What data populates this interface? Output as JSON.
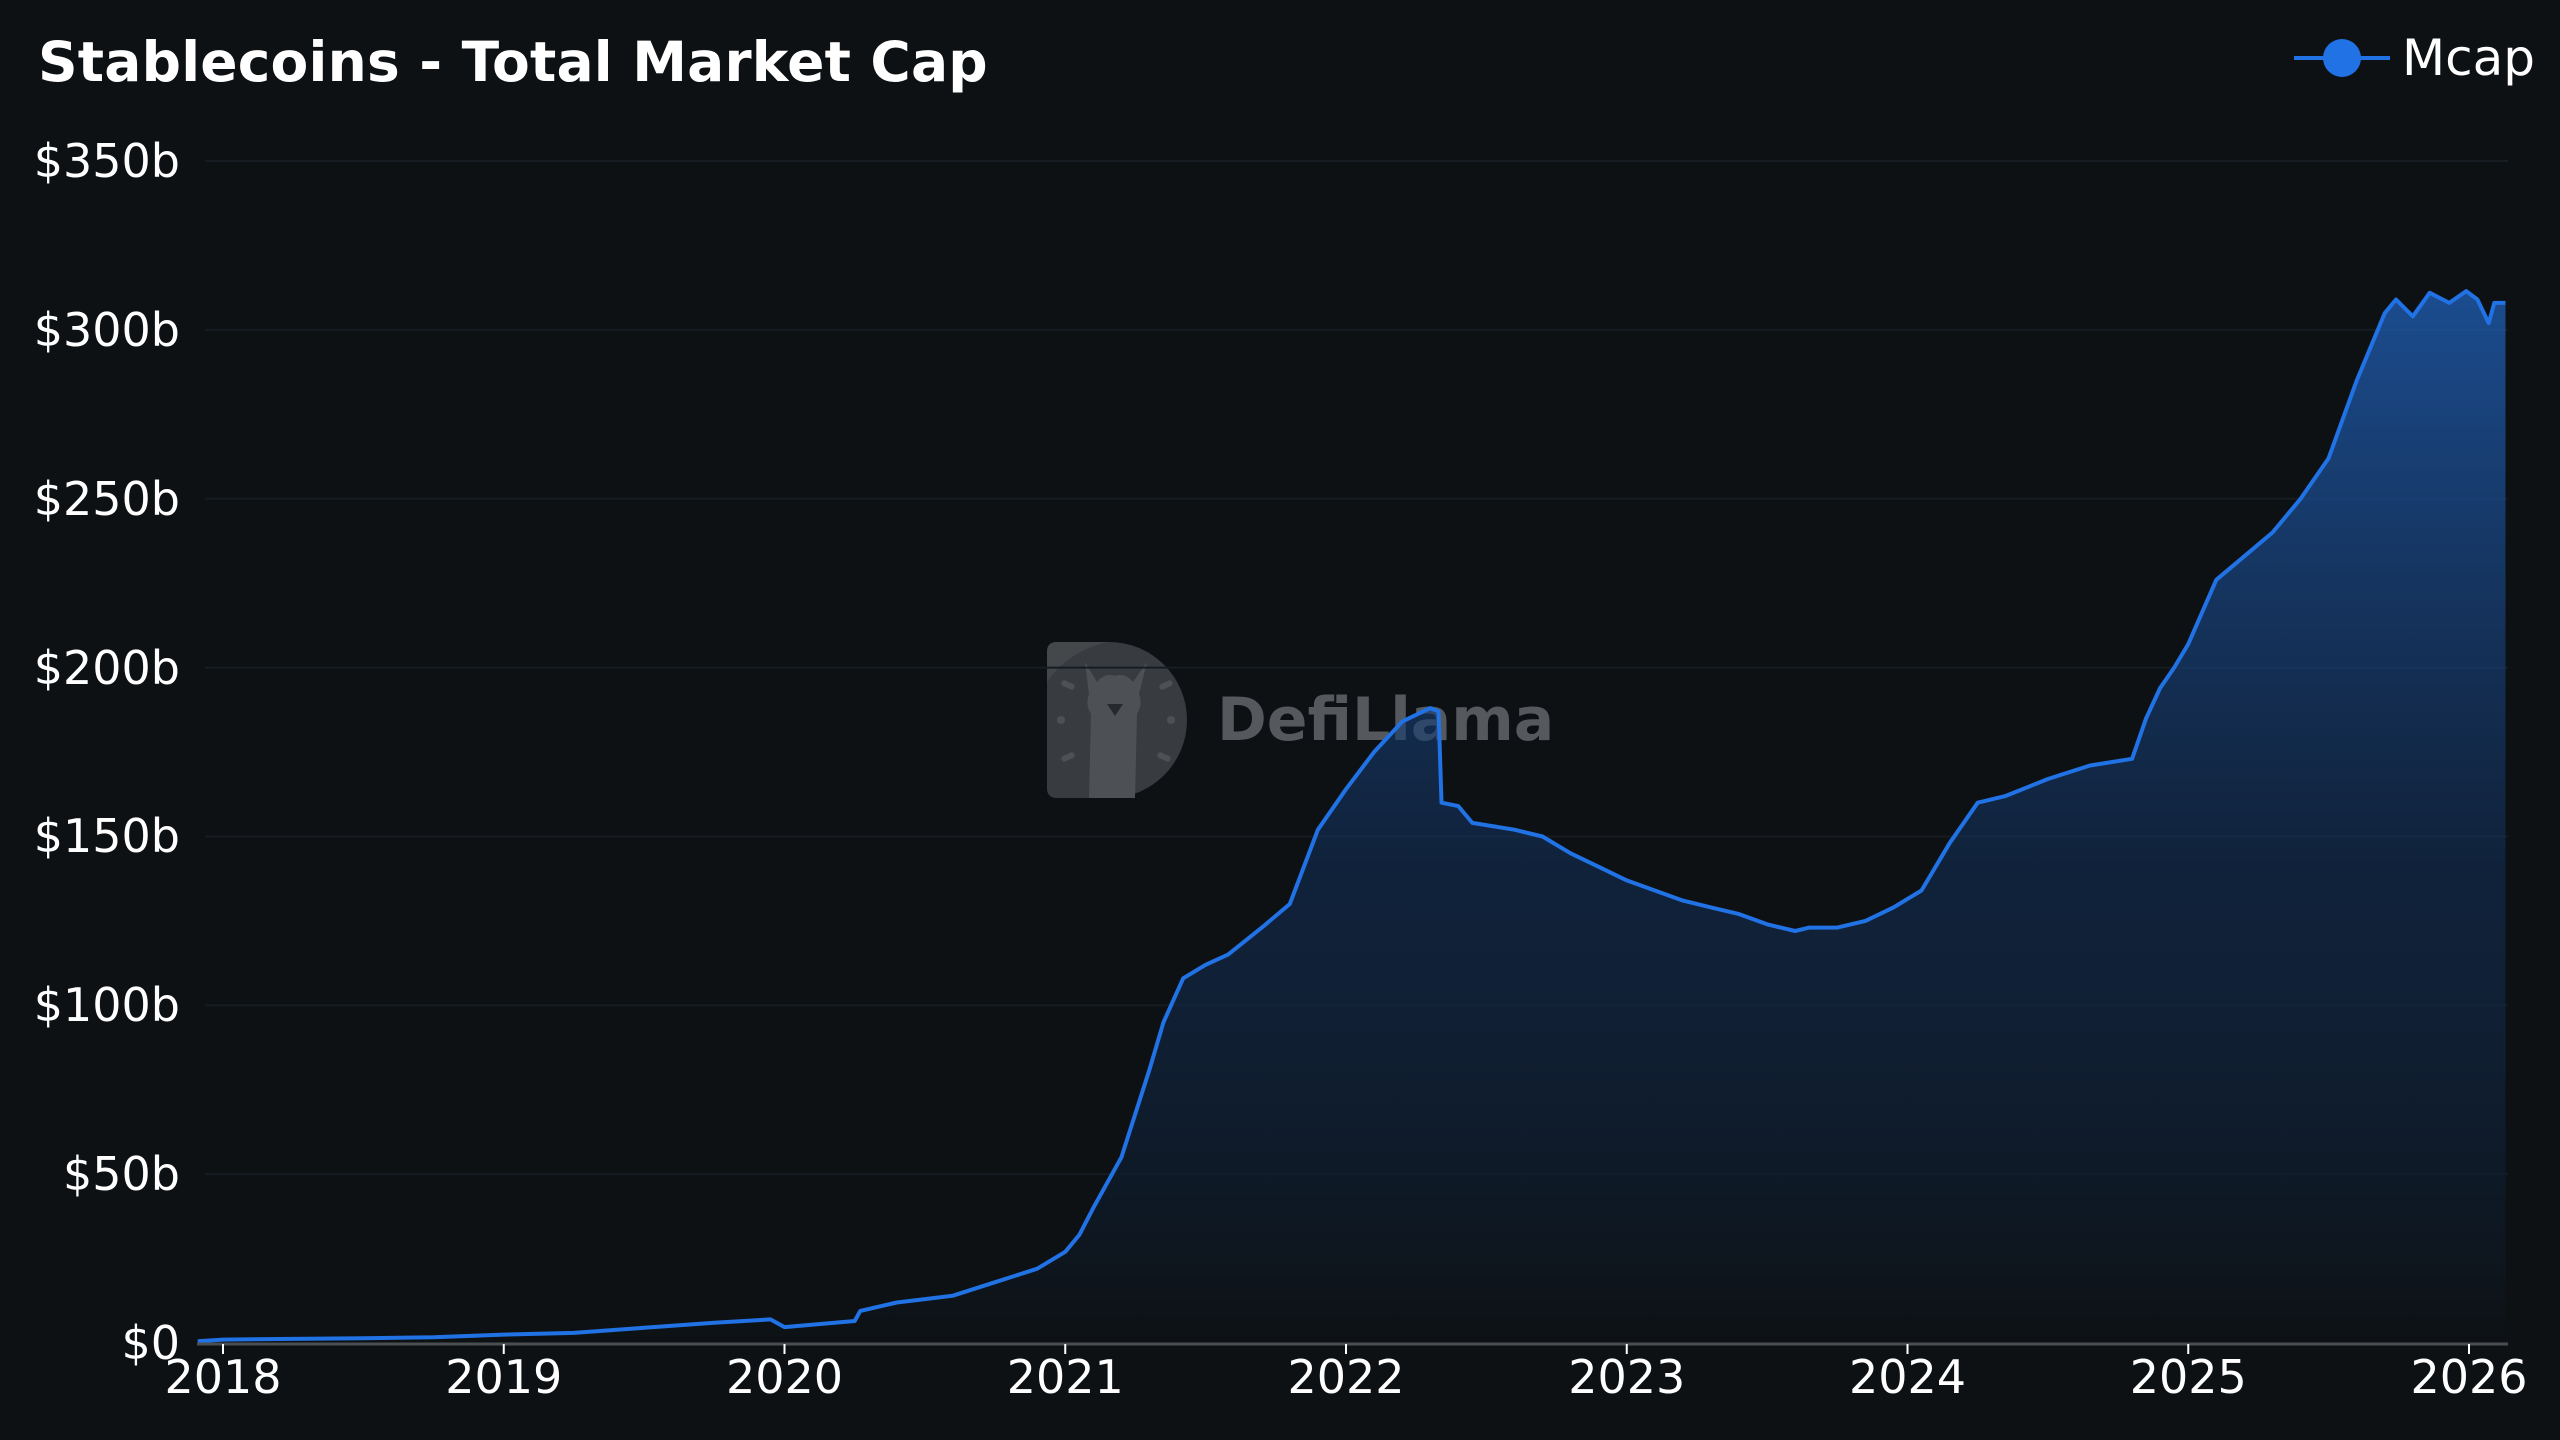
{
  "header": {
    "title": "Stablecoins - Total Market Cap"
  },
  "legend": {
    "label": "Mcap",
    "icon": "line-dot-icon",
    "color": "#2172e5"
  },
  "watermark": {
    "text": "DefiLlama",
    "icon": "llama-logo-icon"
  },
  "colors": {
    "background": "#0d1114",
    "line": "#2172e5",
    "fill_top": "#2060b8",
    "fill_bottom": "#0d1114",
    "grid": "#161c22",
    "axis": "#4a4e52"
  },
  "y_axis": {
    "ticks": [
      {
        "label": "$350b",
        "value": 350
      },
      {
        "label": "$300b",
        "value": 300
      },
      {
        "label": "$250b",
        "value": 250
      },
      {
        "label": "$200b",
        "value": 200
      },
      {
        "label": "$150b",
        "value": 150
      },
      {
        "label": "$100b",
        "value": 100
      },
      {
        "label": "$50b",
        "value": 50
      },
      {
        "label": "$0",
        "value": 0
      }
    ]
  },
  "x_axis": {
    "ticks": [
      {
        "label": "2018",
        "value": 2018
      },
      {
        "label": "2019",
        "value": 2019
      },
      {
        "label": "2020",
        "value": 2020
      },
      {
        "label": "2021",
        "value": 2021
      },
      {
        "label": "2022",
        "value": 2022
      },
      {
        "label": "2023",
        "value": 2023
      },
      {
        "label": "2024",
        "value": 2024
      },
      {
        "label": "2025",
        "value": 2025
      },
      {
        "label": "2026",
        "value": 2026
      }
    ]
  },
  "chart_data": {
    "type": "area",
    "title": "Stablecoins - Total Market Cap",
    "xlabel": "",
    "ylabel": "",
    "ylim": [
      0,
      350
    ],
    "xlim": [
      2017.91,
      2026.14
    ],
    "legend": [
      "Mcap"
    ],
    "legend_position": "top-right",
    "grid": true,
    "unit": "USD billions",
    "series": [
      {
        "name": "Mcap",
        "x": [
          2017.91,
          2018.0,
          2018.25,
          2018.5,
          2018.75,
          2019.0,
          2019.25,
          2019.5,
          2019.75,
          2019.95,
          2020.0,
          2020.25,
          2020.27,
          2020.4,
          2020.5,
          2020.6,
          2020.75,
          2020.9,
          2021.0,
          2021.05,
          2021.1,
          2021.2,
          2021.3,
          2021.35,
          2021.42,
          2021.5,
          2021.58,
          2021.7,
          2021.8,
          2021.9,
          2022.0,
          2022.1,
          2022.2,
          2022.3,
          2022.33,
          2022.34,
          2022.4,
          2022.45,
          2022.6,
          2022.7,
          2022.8,
          2022.9,
          2023.0,
          2023.1,
          2023.2,
          2023.3,
          2023.4,
          2023.5,
          2023.6,
          2023.65,
          2023.75,
          2023.85,
          2023.95,
          2024.05,
          2024.15,
          2024.25,
          2024.35,
          2024.5,
          2024.65,
          2024.8,
          2024.85,
          2024.9,
          2024.95,
          2025.0,
          2025.1,
          2025.2,
          2025.3,
          2025.4,
          2025.5,
          2025.6,
          2025.7,
          2025.74,
          2025.8,
          2025.86,
          2025.93,
          2025.99,
          2026.03,
          2026.07,
          2026.09,
          2026.1,
          2026.13
        ],
        "values": [
          0.5,
          1.0,
          1.2,
          1.4,
          1.7,
          2.5,
          3.0,
          4.5,
          6.0,
          7.0,
          4.7,
          6.5,
          9.5,
          12.0,
          13.0,
          14.0,
          18.0,
          22.0,
          27.0,
          32.0,
          40.0,
          55.0,
          81.0,
          95.0,
          108.0,
          112.0,
          115.0,
          123.0,
          130.0,
          152.0,
          164.0,
          175.0,
          184.0,
          188.0,
          187.0,
          160.0,
          159.0,
          154.0,
          152.0,
          150.0,
          145.0,
          141.0,
          137.0,
          134.0,
          131.0,
          129.0,
          127.0,
          124.0,
          122.0,
          123.0,
          123.0,
          125.0,
          129.0,
          134.0,
          148.0,
          160.0,
          162.0,
          167.0,
          171.0,
          173.0,
          185.0,
          194.0,
          200.0,
          207.0,
          226.0,
          233.0,
          240.0,
          250.0,
          262.0,
          285.0,
          305.0,
          309.0,
          304.0,
          311.0,
          308.0,
          311.5,
          309.0,
          302.0,
          308.0,
          308.0,
          308.0
        ]
      }
    ]
  }
}
